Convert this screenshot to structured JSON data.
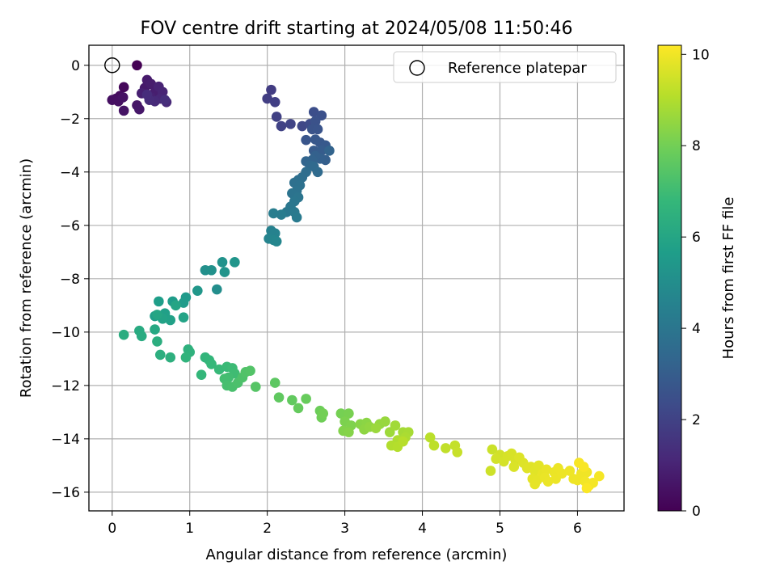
{
  "chart_data": {
    "type": "scatter",
    "title": "FOV centre drift starting at 2024/05/08 11:50:46",
    "xlabel": "Angular distance from reference (arcmin)",
    "ylabel": "Rotation from reference (arcmin)",
    "xlim": [
      -0.3,
      6.6
    ],
    "ylim": [
      -16.7,
      0.75
    ],
    "xticks": [
      0,
      1,
      2,
      3,
      4,
      5,
      6
    ],
    "yticks": [
      0,
      -2,
      -4,
      -6,
      -8,
      -10,
      -12,
      -14,
      -16
    ],
    "xtick_labels": [
      "0",
      "1",
      "2",
      "3",
      "4",
      "5",
      "6"
    ],
    "ytick_labels": [
      "0",
      "−2",
      "−4",
      "−6",
      "−8",
      "−10",
      "−12",
      "−14",
      "−16"
    ],
    "grid": true,
    "legend": {
      "placement": "top-right",
      "entries": [
        "Reference platepar"
      ]
    },
    "reference_point": {
      "name": "Reference platepar",
      "x": 0,
      "y": 0
    },
    "colorbar": {
      "label": "Hours from first FF file",
      "range": [
        0,
        10.2
      ],
      "ticks": [
        0,
        2,
        4,
        6,
        8,
        10
      ],
      "tick_labels": [
        "0",
        "2",
        "4",
        "6",
        "8",
        "10"
      ],
      "colormap": "viridis"
    },
    "points": [
      [
        0.32,
        0.0,
        0.0
      ],
      [
        0.15,
        -0.82,
        0.2
      ],
      [
        0.1,
        -1.15,
        0.3
      ],
      [
        0.05,
        -1.25,
        0.35
      ],
      [
        0.0,
        -1.3,
        0.4
      ],
      [
        0.08,
        -1.35,
        0.45
      ],
      [
        0.14,
        -1.2,
        0.5
      ],
      [
        0.15,
        -1.7,
        0.55
      ],
      [
        0.32,
        -1.5,
        0.6
      ],
      [
        0.35,
        -1.65,
        0.65
      ],
      [
        0.42,
        -0.85,
        0.7
      ],
      [
        0.45,
        -0.55,
        0.75
      ],
      [
        0.5,
        -0.7,
        0.8
      ],
      [
        0.55,
        -1.0,
        0.85
      ],
      [
        0.38,
        -1.05,
        0.9
      ],
      [
        0.5,
        -1.2,
        0.95
      ],
      [
        0.6,
        -0.8,
        1.0
      ],
      [
        0.65,
        -1.0,
        1.05
      ],
      [
        0.62,
        -1.25,
        1.1
      ],
      [
        0.7,
        -1.38,
        1.15
      ],
      [
        0.55,
        -1.35,
        1.2
      ],
      [
        0.48,
        -1.3,
        1.25
      ],
      [
        0.45,
        -1.1,
        1.3
      ],
      [
        0.68,
        -1.3,
        1.35
      ],
      [
        2.05,
        -0.92,
        1.8
      ],
      [
        2.0,
        -1.25,
        1.85
      ],
      [
        2.1,
        -1.38,
        1.9
      ],
      [
        2.12,
        -1.93,
        1.95
      ],
      [
        2.18,
        -2.28,
        2.0
      ],
      [
        2.3,
        -2.2,
        2.05
      ],
      [
        2.45,
        -2.28,
        2.15
      ],
      [
        2.55,
        -2.2,
        2.3
      ],
      [
        2.6,
        -1.75,
        2.4
      ],
      [
        2.7,
        -1.88,
        2.5
      ],
      [
        2.62,
        -2.1,
        2.55
      ],
      [
        2.58,
        -2.4,
        2.6
      ],
      [
        2.65,
        -2.4,
        2.65
      ],
      [
        2.5,
        -2.8,
        2.7
      ],
      [
        2.62,
        -2.78,
        2.75
      ],
      [
        2.68,
        -2.9,
        2.8
      ],
      [
        2.75,
        -3.0,
        2.85
      ],
      [
        2.6,
        -3.2,
        2.9
      ],
      [
        2.7,
        -3.2,
        2.95
      ],
      [
        2.75,
        -3.55,
        3.05
      ],
      [
        2.68,
        -3.5,
        3.1
      ],
      [
        2.62,
        -3.4,
        3.15
      ],
      [
        2.58,
        -3.55,
        3.2
      ],
      [
        2.8,
        -3.2,
        3.25
      ],
      [
        2.5,
        -3.6,
        3.3
      ],
      [
        2.55,
        -3.75,
        3.4
      ],
      [
        2.6,
        -3.8,
        3.5
      ],
      [
        2.65,
        -4.0,
        3.55
      ],
      [
        2.5,
        -4.0,
        3.6
      ],
      [
        2.45,
        -4.2,
        3.65
      ],
      [
        2.4,
        -4.3,
        3.7
      ],
      [
        2.35,
        -4.4,
        3.75
      ],
      [
        2.42,
        -4.5,
        3.8
      ],
      [
        2.38,
        -4.7,
        3.85
      ],
      [
        2.32,
        -4.8,
        3.9
      ],
      [
        2.4,
        -4.95,
        3.95
      ],
      [
        2.35,
        -5.1,
        4.0
      ],
      [
        2.3,
        -5.3,
        4.05
      ],
      [
        2.25,
        -5.5,
        4.1
      ],
      [
        2.35,
        -5.5,
        4.15
      ],
      [
        2.38,
        -5.7,
        4.2
      ],
      [
        2.18,
        -5.6,
        4.25
      ],
      [
        2.08,
        -5.55,
        4.3
      ],
      [
        2.05,
        -6.2,
        4.5
      ],
      [
        2.1,
        -6.3,
        4.55
      ],
      [
        2.02,
        -6.5,
        4.6
      ],
      [
        2.08,
        -6.55,
        4.65
      ],
      [
        2.12,
        -6.6,
        4.7
      ],
      [
        1.35,
        -8.4,
        5.0
      ],
      [
        1.2,
        -7.68,
        5.1
      ],
      [
        1.28,
        -7.68,
        5.15
      ],
      [
        1.42,
        -7.38,
        5.2
      ],
      [
        1.45,
        -7.75,
        5.25
      ],
      [
        1.58,
        -7.38,
        5.3
      ],
      [
        1.1,
        -8.45,
        5.4
      ],
      [
        0.95,
        -8.7,
        5.5
      ],
      [
        0.92,
        -8.9,
        5.55
      ],
      [
        0.78,
        -8.85,
        5.6
      ],
      [
        0.6,
        -8.85,
        5.65
      ],
      [
        0.55,
        -9.4,
        5.7
      ],
      [
        0.68,
        -9.3,
        5.75
      ],
      [
        0.75,
        -9.55,
        5.8
      ],
      [
        0.65,
        -9.5,
        5.85
      ],
      [
        0.92,
        -9.45,
        5.9
      ],
      [
        0.82,
        -9.0,
        5.95
      ],
      [
        0.58,
        -9.35,
        6.0
      ],
      [
        0.55,
        -9.9,
        6.1
      ],
      [
        0.35,
        -9.95,
        6.2
      ],
      [
        0.38,
        -10.15,
        6.25
      ],
      [
        0.15,
        -10.1,
        6.3
      ],
      [
        0.58,
        -10.35,
        6.35
      ],
      [
        0.62,
        -10.85,
        6.4
      ],
      [
        0.75,
        -10.95,
        6.45
      ],
      [
        0.98,
        -10.65,
        6.5
      ],
      [
        1.0,
        -10.75,
        6.55
      ],
      [
        0.95,
        -10.95,
        6.6
      ],
      [
        1.2,
        -10.95,
        6.65
      ],
      [
        1.25,
        -11.05,
        6.7
      ],
      [
        1.15,
        -11.6,
        6.75
      ],
      [
        1.28,
        -11.2,
        6.8
      ],
      [
        1.38,
        -11.4,
        6.85
      ],
      [
        1.48,
        -11.3,
        6.9
      ],
      [
        1.55,
        -11.35,
        6.95
      ],
      [
        1.58,
        -11.55,
        7.0
      ],
      [
        1.5,
        -11.7,
        7.05
      ],
      [
        1.45,
        -11.75,
        7.1
      ],
      [
        1.48,
        -12.0,
        7.15
      ],
      [
        1.55,
        -12.05,
        7.2
      ],
      [
        1.62,
        -11.9,
        7.25
      ],
      [
        1.68,
        -11.7,
        7.3
      ],
      [
        1.72,
        -11.5,
        7.35
      ],
      [
        1.78,
        -11.45,
        7.4
      ],
      [
        1.85,
        -12.05,
        7.45
      ],
      [
        2.1,
        -11.9,
        7.6
      ],
      [
        2.15,
        -12.45,
        7.65
      ],
      [
        2.32,
        -12.55,
        7.7
      ],
      [
        2.4,
        -12.85,
        7.75
      ],
      [
        2.5,
        -12.5,
        7.8
      ],
      [
        2.68,
        -12.95,
        7.9
      ],
      [
        2.7,
        -13.2,
        7.95
      ],
      [
        2.72,
        -13.05,
        8.0
      ],
      [
        2.95,
        -13.05,
        8.05
      ],
      [
        3.05,
        -13.05,
        8.1
      ],
      [
        3.0,
        -13.35,
        8.15
      ],
      [
        3.08,
        -13.5,
        8.2
      ],
      [
        2.98,
        -13.7,
        8.25
      ],
      [
        3.05,
        -13.75,
        8.3
      ],
      [
        3.2,
        -13.45,
        8.35
      ],
      [
        3.28,
        -13.4,
        8.4
      ],
      [
        3.25,
        -13.65,
        8.45
      ],
      [
        3.32,
        -13.55,
        8.5
      ],
      [
        3.45,
        -13.45,
        8.55
      ],
      [
        3.52,
        -13.35,
        8.6
      ],
      [
        3.4,
        -13.6,
        8.65
      ],
      [
        3.58,
        -13.75,
        8.7
      ],
      [
        3.65,
        -13.5,
        8.75
      ],
      [
        3.75,
        -13.75,
        8.8
      ],
      [
        3.82,
        -13.75,
        8.85
      ],
      [
        3.78,
        -13.95,
        8.9
      ],
      [
        3.68,
        -14.05,
        8.95
      ],
      [
        3.6,
        -14.25,
        9.0
      ],
      [
        3.68,
        -14.3,
        9.05
      ],
      [
        3.75,
        -14.1,
        9.1
      ],
      [
        4.1,
        -13.95,
        9.15
      ],
      [
        4.15,
        -14.25,
        9.2
      ],
      [
        4.3,
        -14.35,
        9.25
      ],
      [
        4.42,
        -14.25,
        9.3
      ],
      [
        4.45,
        -14.5,
        9.35
      ],
      [
        4.9,
        -14.4,
        9.4
      ],
      [
        4.88,
        -15.2,
        9.45
      ],
      [
        5.0,
        -14.6,
        9.5
      ],
      [
        4.95,
        -14.75,
        9.52
      ],
      [
        5.05,
        -14.85,
        9.55
      ],
      [
        5.1,
        -14.65,
        9.58
      ],
      [
        5.15,
        -14.55,
        9.6
      ],
      [
        5.2,
        -14.8,
        9.62
      ],
      [
        5.18,
        -15.05,
        9.65
      ],
      [
        5.25,
        -14.7,
        9.68
      ],
      [
        5.3,
        -14.9,
        9.7
      ],
      [
        5.35,
        -15.1,
        9.72
      ],
      [
        5.4,
        -15.05,
        9.74
      ],
      [
        5.45,
        -15.2,
        9.76
      ],
      [
        5.5,
        -15.0,
        9.78
      ],
      [
        5.42,
        -15.5,
        9.8
      ],
      [
        5.48,
        -15.55,
        9.82
      ],
      [
        5.45,
        -15.7,
        9.84
      ],
      [
        5.55,
        -15.3,
        9.86
      ],
      [
        5.6,
        -15.15,
        9.88
      ],
      [
        5.58,
        -15.45,
        9.9
      ],
      [
        5.62,
        -15.6,
        9.91
      ],
      [
        5.7,
        -15.25,
        9.92
      ],
      [
        5.75,
        -15.1,
        9.93
      ],
      [
        5.72,
        -15.5,
        9.94
      ],
      [
        5.8,
        -15.3,
        9.95
      ],
      [
        5.9,
        -15.2,
        9.96
      ],
      [
        5.95,
        -15.5,
        9.97
      ],
      [
        6.0,
        -15.55,
        9.98
      ],
      [
        6.05,
        -15.3,
        9.99
      ],
      [
        6.12,
        -15.25,
        10.0
      ],
      [
        6.1,
        -15.6,
        10.02
      ],
      [
        6.15,
        -15.75,
        10.04
      ],
      [
        6.2,
        -15.65,
        10.06
      ],
      [
        6.28,
        -15.4,
        10.08
      ],
      [
        6.02,
        -14.9,
        10.1
      ],
      [
        6.08,
        -15.05,
        10.12
      ],
      [
        6.12,
        -15.85,
        10.15
      ]
    ]
  }
}
